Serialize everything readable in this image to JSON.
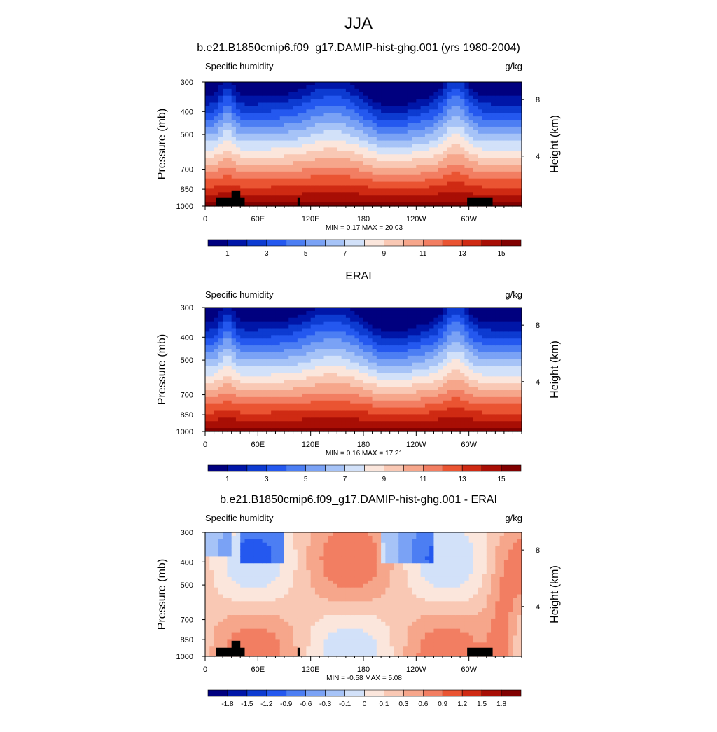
{
  "main_title": "JJA",
  "chart_data": [
    {
      "type": "heatmap",
      "title": "b.e21.B1850cmip6.f09_g17.DAMIP-hist-ghg.001 (yrs 1980-2004)",
      "left_label": "Specific humidity",
      "units": "g/kg",
      "ylabel": "Pressure (mb)",
      "y2label": "Height (km)",
      "yticks": [
        300,
        400,
        500,
        700,
        850,
        1000
      ],
      "ylim": [
        1000,
        300
      ],
      "y2ticks": [
        "8",
        "4"
      ],
      "xticks": [
        "0",
        "60E",
        "120E",
        "180",
        "120W",
        "60W"
      ],
      "xlim": [
        0,
        360
      ],
      "min": "0.17",
      "max": "20.03",
      "colorbar_labels": [
        "1",
        "3",
        "5",
        "7",
        "9",
        "11",
        "13",
        "15"
      ],
      "terrain": true
    },
    {
      "type": "heatmap",
      "title": "ERAI",
      "left_label": "Specific humidity",
      "units": "g/kg",
      "ylabel": "Pressure (mb)",
      "y2label": "Height (km)",
      "yticks": [
        300,
        400,
        500,
        700,
        850,
        1000
      ],
      "ylim": [
        1000,
        300
      ],
      "y2ticks": [
        "8",
        "4"
      ],
      "xticks": [
        "0",
        "60E",
        "120E",
        "180",
        "120W",
        "60W"
      ],
      "xlim": [
        0,
        360
      ],
      "min": "0.16",
      "max": "17.21",
      "colorbar_labels": [
        "1",
        "3",
        "5",
        "7",
        "9",
        "11",
        "13",
        "15"
      ],
      "terrain": false
    },
    {
      "type": "heatmap",
      "title": "b.e21.B1850cmip6.f09_g17.DAMIP-hist-ghg.001 - ERAI",
      "left_label": "Specific humidity",
      "units": "g/kg",
      "ylabel": "Pressure (mb)",
      "y2label": "Height (km)",
      "yticks": [
        300,
        400,
        500,
        700,
        850,
        1000
      ],
      "ylim": [
        1000,
        300
      ],
      "y2ticks": [
        "8",
        "4"
      ],
      "xticks": [
        "0",
        "60E",
        "120E",
        "180",
        "120W",
        "60W"
      ],
      "xlim": [
        0,
        360
      ],
      "min": "-0.58",
      "max": "5.08",
      "colorbar_labels": [
        "-1.8",
        "-1.5",
        "-1.2",
        "-0.9",
        "-0.6",
        "-0.3",
        "-0.1",
        "0",
        "0.1",
        "0.3",
        "0.6",
        "0.9",
        "1.2",
        "1.5",
        "1.8"
      ],
      "terrain": true
    }
  ],
  "palette": [
    "#00007f",
    "#0016a8",
    "#0d3bd1",
    "#2458ef",
    "#4c7ef3",
    "#7aa2f5",
    "#a6c3f7",
    "#d2e1f9",
    "#fbe6dc",
    "#f9c8b4",
    "#f6a68b",
    "#f27e62",
    "#ea5432",
    "#cf2a13",
    "#a80e05",
    "#800000"
  ]
}
